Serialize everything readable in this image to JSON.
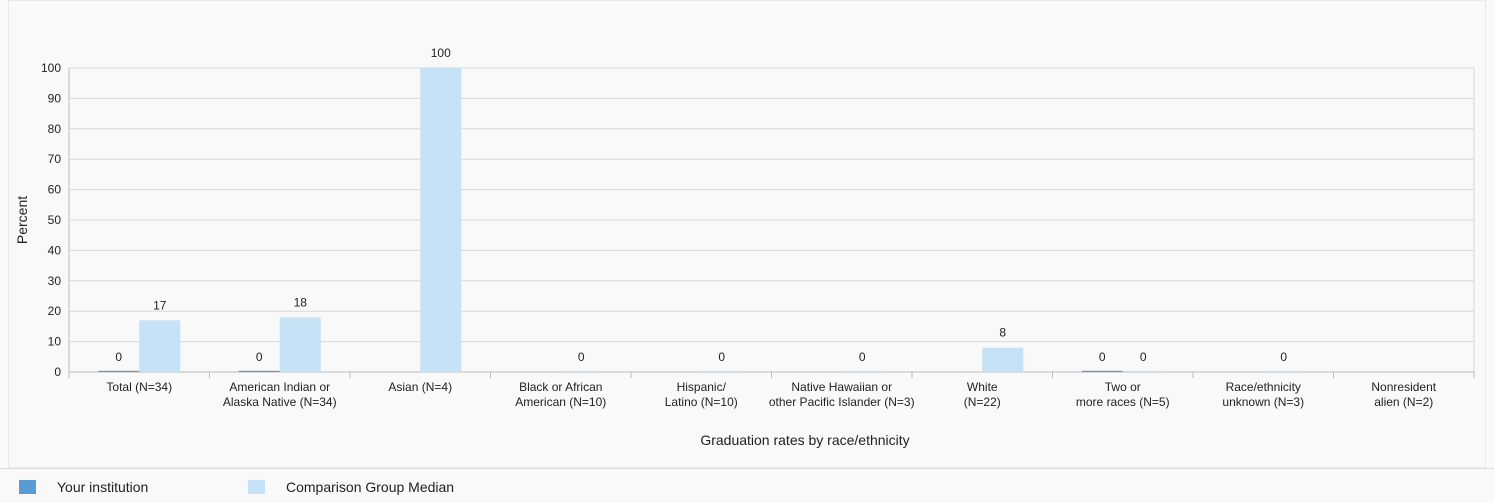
{
  "chart_data": {
    "type": "bar",
    "xlabel": "Graduation rates by race/ethnicity",
    "ylabel": "Percent",
    "ylim": [
      0,
      100
    ],
    "yticks": [
      0,
      10,
      20,
      30,
      40,
      50,
      60,
      70,
      80,
      90,
      100
    ],
    "grid": true,
    "legend_position": "bottom",
    "categories": [
      [
        "Total (N=34)"
      ],
      [
        "American Indian or",
        "Alaska Native (N=34)"
      ],
      [
        "Asian (N=4)"
      ],
      [
        "Black or African",
        "American (N=10)"
      ],
      [
        "Hispanic/",
        "Latino (N=10)"
      ],
      [
        "Native Hawaiian or",
        "other Pacific Islander (N=3)"
      ],
      [
        "White",
        "(N=22)"
      ],
      [
        "Two or",
        "more races (N=5)"
      ],
      [
        "Race/ethnicity",
        "unknown (N=3)"
      ],
      [
        "Nonresident",
        "alien (N=2)"
      ]
    ],
    "series": [
      {
        "name": "Your institution",
        "color": "#5b9bd5",
        "values": [
          0,
          0,
          null,
          null,
          null,
          null,
          null,
          0,
          null,
          null
        ],
        "labels": [
          "0",
          "0",
          "",
          "",
          "",
          "",
          "",
          "0",
          "",
          ""
        ]
      },
      {
        "name": "Comparison Group Median",
        "color": "#c6e2f7",
        "values": [
          17,
          18,
          100,
          0,
          0,
          0,
          8,
          0,
          0,
          null
        ],
        "labels": [
          "17",
          "18",
          "100",
          "0",
          "0",
          "0",
          "8",
          "0",
          "0",
          ""
        ]
      }
    ]
  },
  "legend": {
    "items": [
      {
        "label": "Your institution",
        "color": "#5b9bd5"
      },
      {
        "label": "Comparison Group Median",
        "color": "#c6e2f7"
      }
    ]
  }
}
